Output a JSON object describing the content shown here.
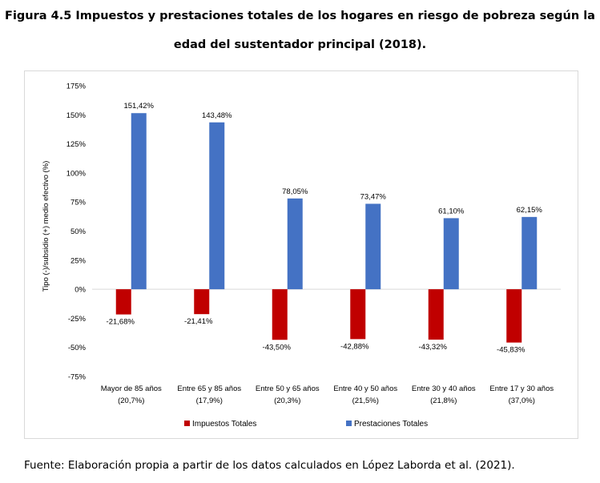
{
  "figure": {
    "title_line1": "Figura 4.5 Impuestos y prestaciones totales de los hogares en riesgo de pobreza según la",
    "title_line2": "edad del sustentador principal (2018).",
    "source": "Fuente: Elaboración propia a partir de los datos calculados en López Laborda et al. (2021)."
  },
  "chart_data": {
    "type": "bar",
    "title": "",
    "xlabel": "",
    "ylabel": "Tipo (-)/subsidio (+) medio efectivo (%)",
    "ylim": [
      -75,
      175
    ],
    "yticks": [
      -75,
      -50,
      -25,
      0,
      25,
      50,
      75,
      100,
      125,
      150,
      175
    ],
    "ytick_labels": [
      "-75%",
      "-50%",
      "-25%",
      "0%",
      "25%",
      "50%",
      "75%",
      "100%",
      "125%",
      "150%",
      "175%"
    ],
    "grid": false,
    "legend_position": "bottom",
    "categories": [
      [
        "Mayor de 85 años",
        "(20,7%)"
      ],
      [
        "Entre 65 y 85 años",
        "(17,9%)"
      ],
      [
        "Entre 50 y 65 años",
        "(20,3%)"
      ],
      [
        "Entre 40 y 50 años",
        "(21,5%)"
      ],
      [
        "Entre 30 y 40 años",
        "(21,8%)"
      ],
      [
        "Entre 17 y 30 años",
        "(37,0%)"
      ]
    ],
    "series": [
      {
        "name": "Impuestos Totales",
        "color": "#c00000",
        "values": [
          -21.68,
          -21.41,
          -43.5,
          -42.88,
          -43.32,
          -45.83
        ],
        "labels": [
          "-21,68%",
          "-21,41%",
          "-43,50%",
          "-42,88%",
          "-43,32%",
          "-45,83%"
        ]
      },
      {
        "name": "Prestaciones Totales",
        "color": "#4472c4",
        "values": [
          151.42,
          143.48,
          78.05,
          73.47,
          61.1,
          62.15
        ],
        "labels": [
          "151,42%",
          "143,48%",
          "78,05%",
          "73,47%",
          "61,10%",
          "62,15%"
        ]
      }
    ]
  }
}
